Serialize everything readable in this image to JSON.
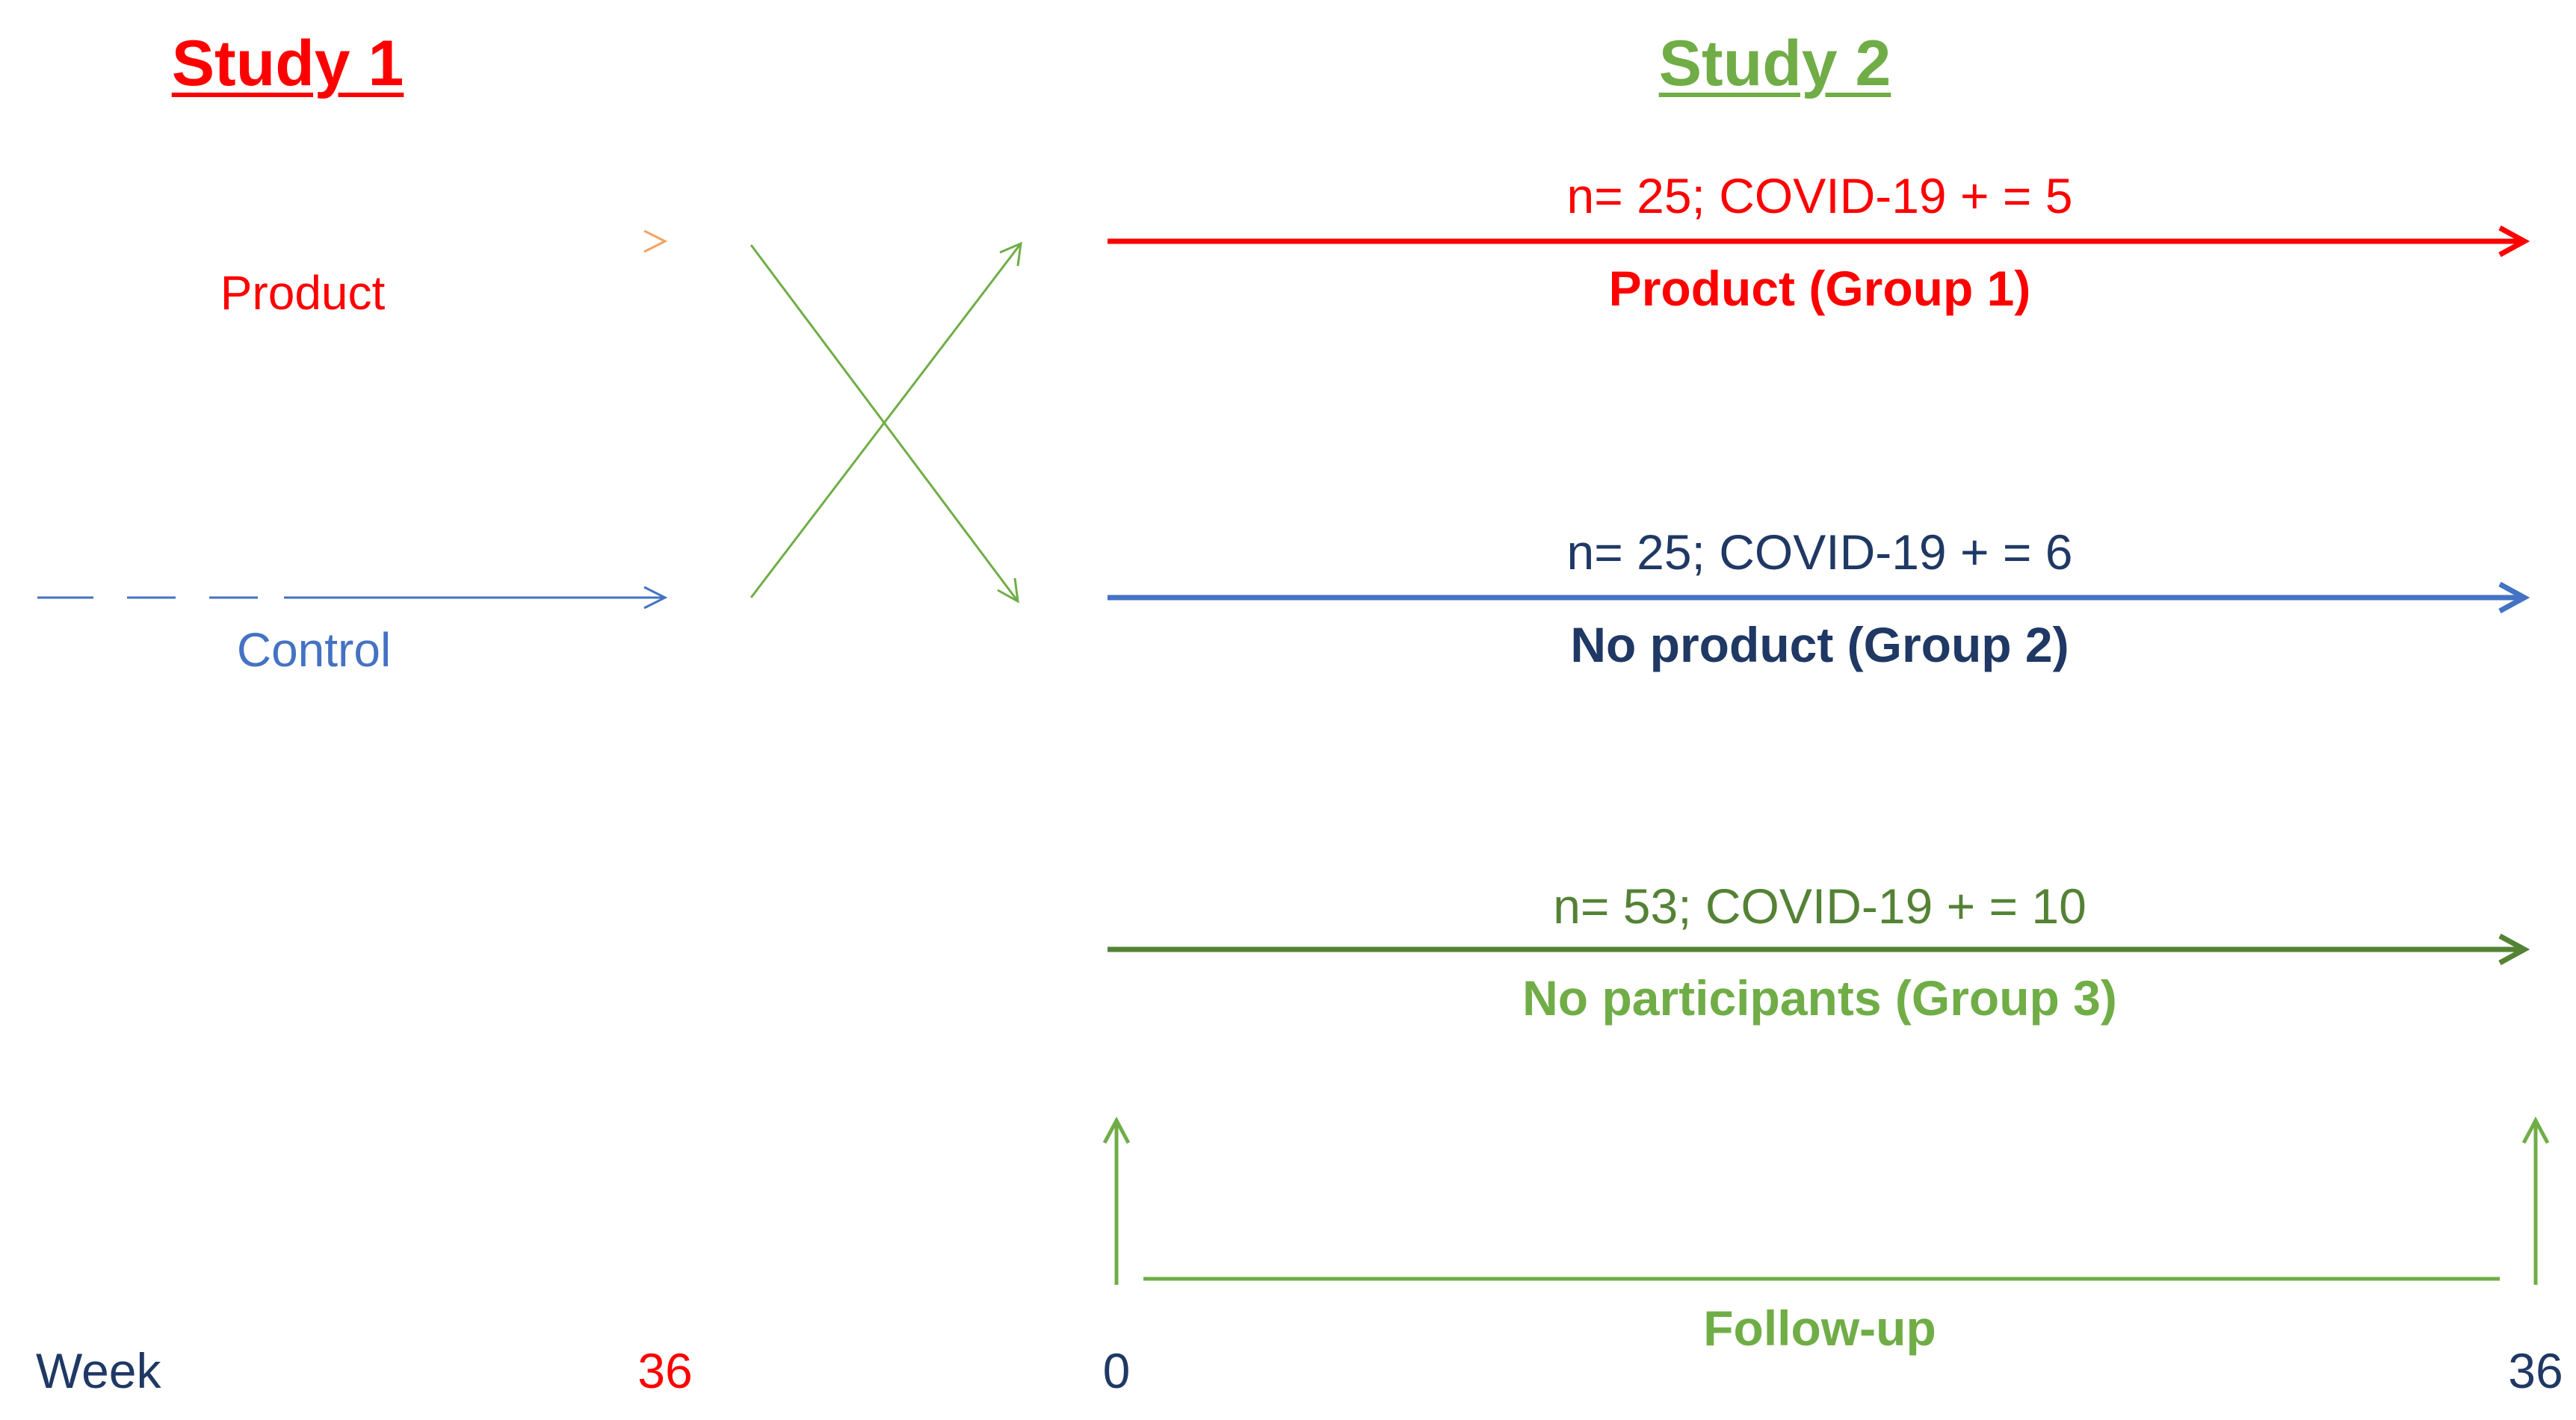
{
  "colors": {
    "red": "#ff0000",
    "orange": "#f4a261",
    "blue": "#4472c4",
    "navy": "#1f3864",
    "dark_green": "#548235",
    "light_green": "#70ad47"
  },
  "study1": {
    "title": "Study 1",
    "arms": [
      {
        "label": "Product",
        "color": "#ff0000"
      },
      {
        "label": "Control",
        "color": "#4472c4"
      }
    ]
  },
  "study2": {
    "title": "Study 2",
    "groups": [
      {
        "count_text": "n= 25; COVID-19 + = 5",
        "label": "Product (Group 1)",
        "count_color": "#ff0000",
        "label_color": "#ff0000",
        "line_color": "#ff0000"
      },
      {
        "count_text": "n= 25; COVID-19 + = 6",
        "label": "No product (Group 2)",
        "count_color": "#1f3864",
        "label_color": "#1f3864",
        "line_color": "#4472c4"
      },
      {
        "count_text": "n= 53; COVID-19 + = 10",
        "label": "No participants (Group 3)",
        "count_color": "#548235",
        "label_color": "#70ad47",
        "line_color": "#548235"
      }
    ],
    "followup_label": "Follow-up"
  },
  "axis": {
    "unit_label": "Week",
    "study1_end": "36",
    "study2_start": "0",
    "study2_end": "36"
  }
}
